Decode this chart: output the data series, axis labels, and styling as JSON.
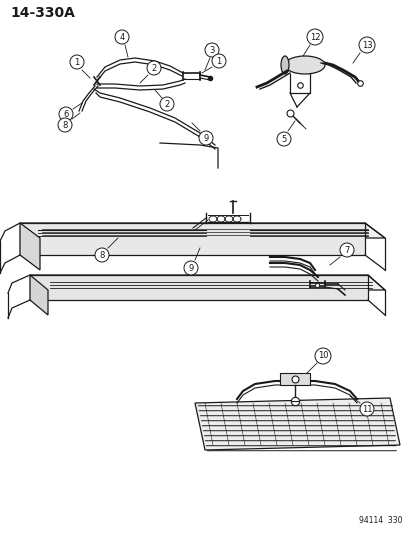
{
  "title": "14-330A",
  "watermark": "94114  330",
  "bg_color": "#ffffff",
  "fg_color": "#1a1a1a",
  "fig_width": 4.14,
  "fig_height": 5.33,
  "dpi": 100
}
